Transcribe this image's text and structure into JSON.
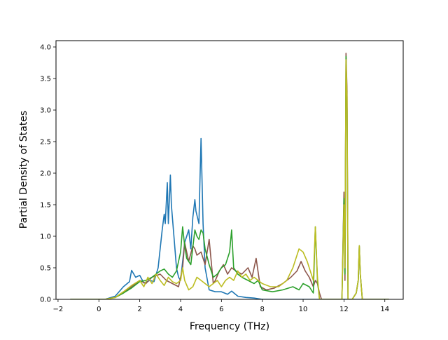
{
  "chart_data": {
    "type": "line",
    "title": "",
    "xlabel": "Frequency (THz)",
    "ylabel": "Partial Density of States",
    "xlim": [
      -2.1,
      14.9
    ],
    "ylim": [
      0,
      4.1
    ],
    "x_ticks": [
      -2,
      0,
      2,
      4,
      6,
      8,
      10,
      12,
      14
    ],
    "x_tick_labels": [
      "−2",
      "0",
      "2",
      "4",
      "6",
      "8",
      "10",
      "12",
      "14"
    ],
    "y_ticks": [
      0.0,
      0.5,
      1.0,
      1.5,
      2.0,
      2.5,
      3.0,
      3.5,
      4.0
    ],
    "y_tick_labels": [
      "0.0",
      "0.5",
      "1.0",
      "1.5",
      "2.0",
      "2.5",
      "3.0",
      "3.5",
      "4.0"
    ],
    "grid": false,
    "legend": "none",
    "series": [
      {
        "color": "#1f77b4",
        "x": [
          -1.4,
          0.3,
          0.8,
          1.2,
          1.5,
          1.6,
          1.8,
          2.0,
          2.2,
          2.5,
          2.7,
          2.9,
          3.0,
          3.1,
          3.2,
          3.25,
          3.35,
          3.4,
          3.5,
          3.55,
          3.7,
          3.8,
          3.9,
          4.0,
          4.2,
          4.4,
          4.5,
          4.6,
          4.7,
          4.75,
          4.9,
          4.95,
          5.0,
          5.05,
          5.1,
          5.2,
          5.4,
          5.7,
          6.0,
          6.3,
          6.5,
          6.8,
          7.2,
          7.6,
          8.0,
          9.0,
          14.2
        ],
        "y": [
          0.0,
          0.0,
          0.05,
          0.2,
          0.28,
          0.46,
          0.35,
          0.38,
          0.26,
          0.3,
          0.28,
          0.5,
          0.8,
          1.1,
          1.35,
          1.2,
          1.85,
          1.2,
          1.97,
          1.5,
          0.9,
          0.5,
          0.35,
          0.3,
          0.9,
          1.1,
          0.8,
          1.3,
          1.58,
          1.4,
          1.2,
          1.9,
          2.55,
          1.9,
          1.2,
          0.5,
          0.15,
          0.12,
          0.12,
          0.08,
          0.13,
          0.05,
          0.03,
          0.02,
          0.0,
          0.0,
          0.0
        ]
      },
      {
        "color": "#8c564b",
        "x": [
          -1.4,
          0.3,
          0.8,
          1.2,
          1.6,
          2.0,
          2.3,
          2.6,
          3.0,
          3.3,
          3.6,
          3.9,
          4.1,
          4.2,
          4.4,
          4.6,
          4.7,
          4.8,
          5.0,
          5.2,
          5.4,
          5.6,
          5.7,
          5.9,
          6.1,
          6.3,
          6.5,
          6.7,
          7.0,
          7.3,
          7.5,
          7.7,
          7.9,
          8.2,
          8.6,
          9.0,
          9.4,
          9.7,
          9.9,
          10.1,
          10.3,
          10.5,
          10.6,
          10.7,
          10.8,
          10.9,
          11.9,
          12.0,
          12.05,
          12.1,
          12.15,
          12.2,
          12.4,
          12.6,
          12.7,
          12.75,
          12.8,
          12.9,
          13.0,
          14.2
        ],
        "y": [
          0.0,
          0.0,
          0.03,
          0.1,
          0.2,
          0.3,
          0.25,
          0.35,
          0.4,
          0.3,
          0.25,
          0.2,
          0.5,
          0.9,
          0.6,
          0.85,
          0.8,
          0.7,
          0.75,
          0.55,
          0.95,
          0.25,
          0.3,
          0.45,
          0.55,
          0.4,
          0.5,
          0.45,
          0.4,
          0.5,
          0.35,
          0.65,
          0.2,
          0.15,
          0.18,
          0.25,
          0.35,
          0.45,
          0.6,
          0.45,
          0.35,
          0.2,
          0.3,
          0.25,
          0.1,
          0.0,
          0.0,
          1.7,
          0.3,
          3.9,
          3.3,
          0.0,
          0.0,
          0.1,
          0.3,
          0.85,
          0.4,
          0.0,
          0.0,
          0.0
        ]
      },
      {
        "color": "#2ca02c",
        "x": [
          -1.4,
          0.3,
          0.8,
          1.2,
          1.6,
          2.0,
          2.3,
          2.6,
          3.0,
          3.2,
          3.4,
          3.6,
          3.8,
          4.0,
          4.1,
          4.2,
          4.3,
          4.5,
          4.7,
          4.8,
          4.9,
          5.0,
          5.1,
          5.2,
          5.4,
          5.6,
          5.8,
          6.0,
          6.2,
          6.4,
          6.5,
          6.6,
          6.8,
          7.0,
          7.3,
          7.6,
          7.8,
          8.0,
          8.5,
          9.0,
          9.5,
          9.8,
          10.0,
          10.3,
          10.5,
          10.6,
          10.7,
          10.8,
          11.9,
          12.0,
          12.05,
          12.1,
          12.15,
          12.2,
          12.4,
          12.6,
          12.7,
          12.75,
          12.8,
          12.9,
          13.0,
          14.2
        ],
        "y": [
          0.0,
          0.0,
          0.03,
          0.1,
          0.18,
          0.28,
          0.3,
          0.35,
          0.45,
          0.48,
          0.4,
          0.35,
          0.45,
          0.75,
          1.15,
          0.85,
          0.65,
          0.55,
          1.1,
          1.0,
          0.95,
          1.1,
          1.05,
          0.8,
          0.55,
          0.35,
          0.4,
          0.5,
          0.55,
          0.75,
          1.1,
          0.5,
          0.4,
          0.35,
          0.3,
          0.25,
          0.3,
          0.15,
          0.12,
          0.15,
          0.2,
          0.15,
          0.25,
          0.2,
          0.1,
          1.15,
          0.3,
          0.0,
          0.0,
          1.6,
          0.4,
          3.85,
          3.0,
          0.0,
          0.0,
          0.1,
          0.3,
          0.85,
          0.4,
          0.0,
          0.0,
          0.0
        ]
      },
      {
        "color": "#bcbd22",
        "x": [
          -1.4,
          0.3,
          0.8,
          1.2,
          1.6,
          2.0,
          2.2,
          2.4,
          2.6,
          2.8,
          3.0,
          3.2,
          3.4,
          3.6,
          3.8,
          4.0,
          4.1,
          4.2,
          4.4,
          4.6,
          4.8,
          5.0,
          5.2,
          5.4,
          5.6,
          5.8,
          6.0,
          6.2,
          6.4,
          6.6,
          6.8,
          7.0,
          7.2,
          7.4,
          7.6,
          7.8,
          8.0,
          8.4,
          8.8,
          9.2,
          9.5,
          9.8,
          10.0,
          10.2,
          10.4,
          10.5,
          10.6,
          10.7,
          10.8,
          11.9,
          12.0,
          12.05,
          12.1,
          12.15,
          12.2,
          12.4,
          12.6,
          12.7,
          12.75,
          12.8,
          12.9,
          13.0,
          14.2
        ],
        "y": [
          0.0,
          0.0,
          0.03,
          0.12,
          0.22,
          0.3,
          0.2,
          0.35,
          0.25,
          0.4,
          0.3,
          0.22,
          0.35,
          0.28,
          0.25,
          0.3,
          0.5,
          0.3,
          0.15,
          0.2,
          0.35,
          0.3,
          0.25,
          0.2,
          0.25,
          0.3,
          0.2,
          0.3,
          0.35,
          0.3,
          0.45,
          0.35,
          0.4,
          0.3,
          0.35,
          0.3,
          0.25,
          0.2,
          0.2,
          0.3,
          0.5,
          0.8,
          0.75,
          0.6,
          0.4,
          0.3,
          1.15,
          0.35,
          0.0,
          0.0,
          1.5,
          0.5,
          3.8,
          3.2,
          0.0,
          0.0,
          0.1,
          0.3,
          0.85,
          0.4,
          0.0,
          0.0,
          0.0
        ]
      }
    ]
  }
}
